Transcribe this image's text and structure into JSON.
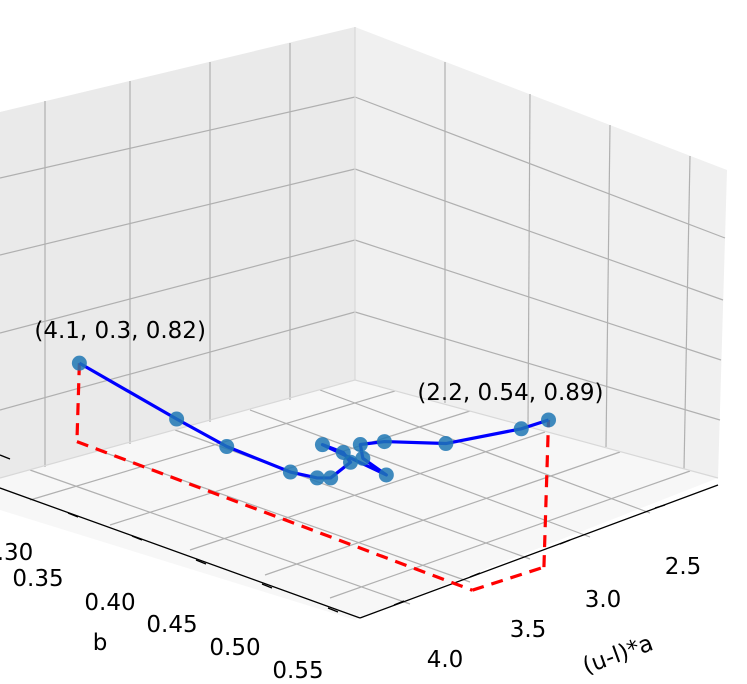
{
  "chart_data": {
    "type": "line",
    "projection": "3d",
    "xlabel": "(u-l)*a",
    "ylabel": "b",
    "zlabel": "",
    "x_ticks": [
      "2.5",
      "3.0",
      "3.5",
      "4.0"
    ],
    "y_ticks": [
      ".30",
      "0.35",
      "0.40",
      "0.45",
      "0.50",
      "0.55"
    ],
    "grid": true,
    "line_color": "#0000ff",
    "marker_color": "#1f77b4",
    "projection_line_color": "#ff0000",
    "points": [
      {
        "x": 4.1,
        "y": 0.3,
        "z": 0.82
      },
      {
        "x": 3.7,
        "y": 0.35,
        "z": 0.79
      },
      {
        "x": 3.5,
        "y": 0.38,
        "z": 0.775
      },
      {
        "x": 3.25,
        "y": 0.42,
        "z": 0.765
      },
      {
        "x": 3.15,
        "y": 0.44,
        "z": 0.765
      },
      {
        "x": 3.1,
        "y": 0.45,
        "z": 0.768
      },
      {
        "x": 3.05,
        "y": 0.48,
        "z": 0.785
      },
      {
        "x": 3.1,
        "y": 0.49,
        "z": 0.79
      },
      {
        "x": 3.2,
        "y": 0.49,
        "z": 0.79
      },
      {
        "x": 2.85,
        "y": 0.46,
        "z": 0.79
      },
      {
        "x": 2.95,
        "y": 0.45,
        "z": 0.8
      },
      {
        "x": 2.95,
        "y": 0.44,
        "z": 0.815
      },
      {
        "x": 2.85,
        "y": 0.45,
        "z": 0.825
      },
      {
        "x": 2.6,
        "y": 0.48,
        "z": 0.84
      },
      {
        "x": 2.3,
        "y": 0.52,
        "z": 0.875
      },
      {
        "x": 2.2,
        "y": 0.54,
        "z": 0.89
      }
    ],
    "annotations": [
      {
        "text": "(4.1, 0.3, 0.82)"
      },
      {
        "text": "(2.2, 0.54, 0.89)"
      }
    ]
  }
}
